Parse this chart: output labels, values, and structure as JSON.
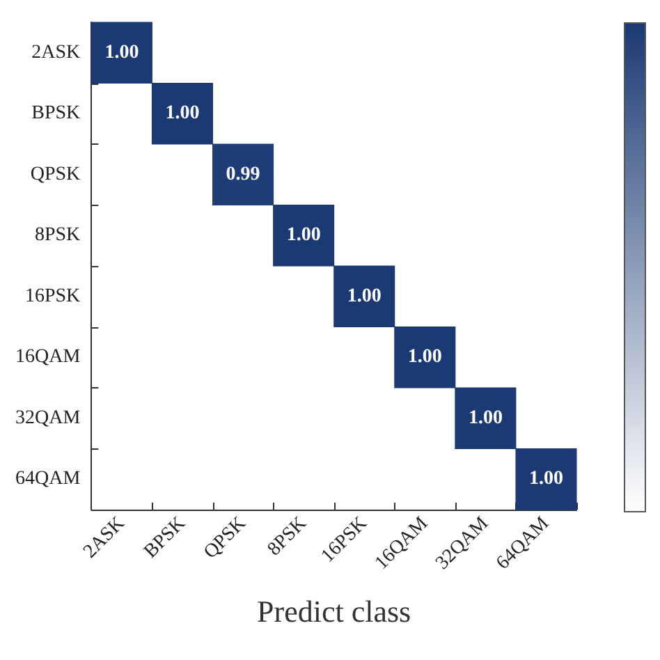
{
  "chart_data": {
    "type": "heatmap",
    "xlabel": "Predict class",
    "categories": [
      "2ASK",
      "BPSK",
      "QPSK",
      "8PSK",
      "16PSK",
      "16QAM",
      "32QAM",
      "64QAM"
    ],
    "y_categories": [
      "2ASK",
      "BPSK",
      "QPSK",
      "8PSK",
      "16PSK",
      "16QAM",
      "32QAM",
      "64QAM"
    ],
    "cells": [
      [
        1.0,
        null,
        null,
        null,
        null,
        null,
        null,
        null
      ],
      [
        null,
        1.0,
        null,
        null,
        null,
        null,
        null,
        null
      ],
      [
        null,
        null,
        0.99,
        null,
        null,
        null,
        null,
        null
      ],
      [
        null,
        null,
        null,
        1.0,
        null,
        null,
        null,
        null
      ],
      [
        null,
        null,
        null,
        null,
        1.0,
        null,
        null,
        null
      ],
      [
        null,
        null,
        null,
        null,
        null,
        1.0,
        null,
        null
      ],
      [
        null,
        null,
        null,
        null,
        null,
        null,
        1.0,
        null
      ],
      [
        null,
        null,
        null,
        null,
        null,
        null,
        null,
        1.0
      ]
    ],
    "cell_labels": [
      [
        "1.00",
        null,
        null,
        null,
        null,
        null,
        null,
        null
      ],
      [
        null,
        "1.00",
        null,
        null,
        null,
        null,
        null,
        null
      ],
      [
        null,
        null,
        "0.99",
        null,
        null,
        null,
        null,
        null
      ],
      [
        null,
        null,
        null,
        "1.00",
        null,
        null,
        null,
        null
      ],
      [
        null,
        null,
        null,
        null,
        "1.00",
        null,
        null,
        null
      ],
      [
        null,
        null,
        null,
        null,
        null,
        "1.00",
        null,
        null
      ],
      [
        null,
        null,
        null,
        null,
        null,
        null,
        "1.00",
        null
      ],
      [
        null,
        null,
        null,
        null,
        null,
        null,
        null,
        "1.00"
      ]
    ],
    "color": "#1b3a73"
  }
}
